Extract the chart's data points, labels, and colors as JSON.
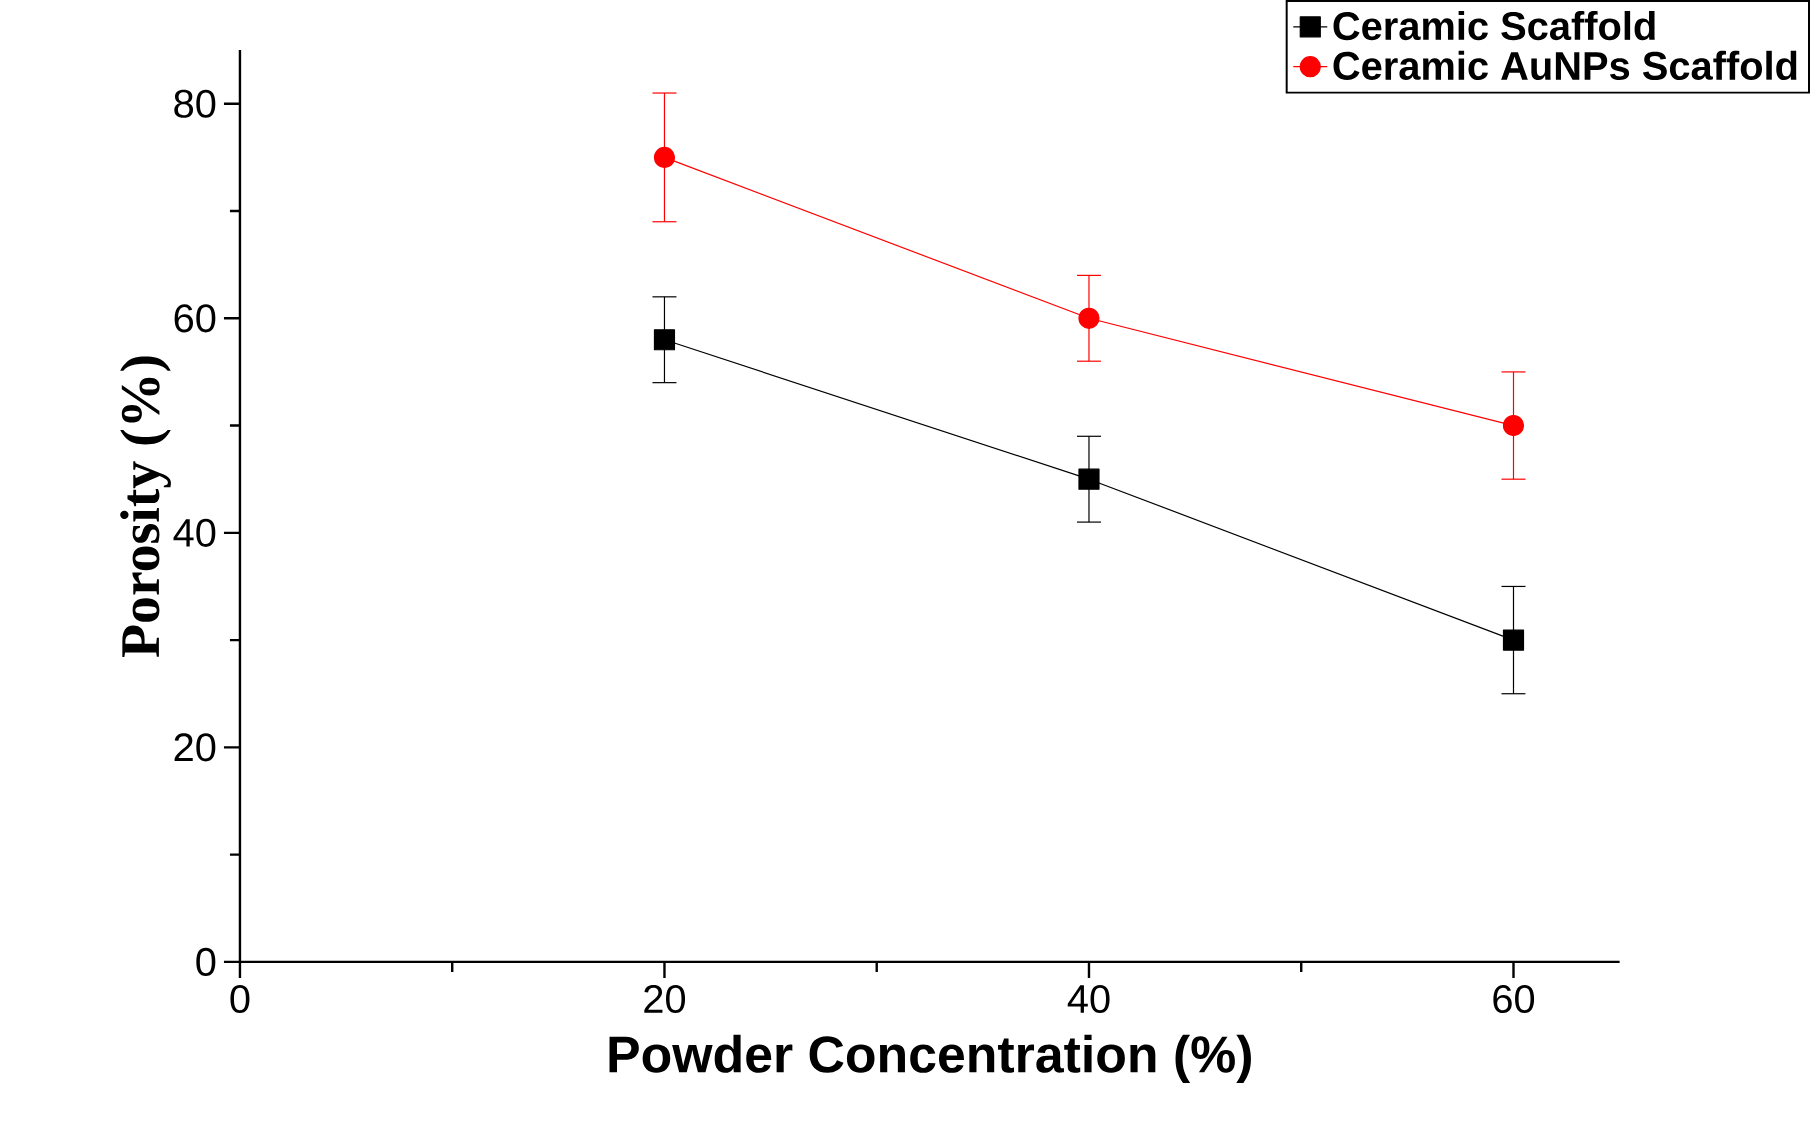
{
  "chart_data": {
    "type": "line",
    "xlabel": "Powder Concentration (%)",
    "ylabel": "Porosity (%)",
    "x": [
      20,
      40,
      60
    ],
    "series": [
      {
        "name": "Ceramic Scaffold",
        "color": "#000000",
        "marker": "square",
        "values": [
          58,
          45,
          30
        ],
        "errors": [
          4,
          4,
          5
        ]
      },
      {
        "name": "Ceramic AuNPs  Scaffold",
        "color": "#ff0000",
        "marker": "circle",
        "values": [
          75,
          60,
          50
        ],
        "errors": [
          6,
          4,
          5
        ]
      }
    ],
    "xlim": [
      0,
      65
    ],
    "ylim": [
      0,
      85
    ],
    "xticks": [
      0,
      20,
      40,
      60
    ],
    "yticks": [
      0,
      20,
      40,
      60,
      80
    ],
    "legend": "top right",
    "grid": false,
    "line_style": "solid"
  }
}
